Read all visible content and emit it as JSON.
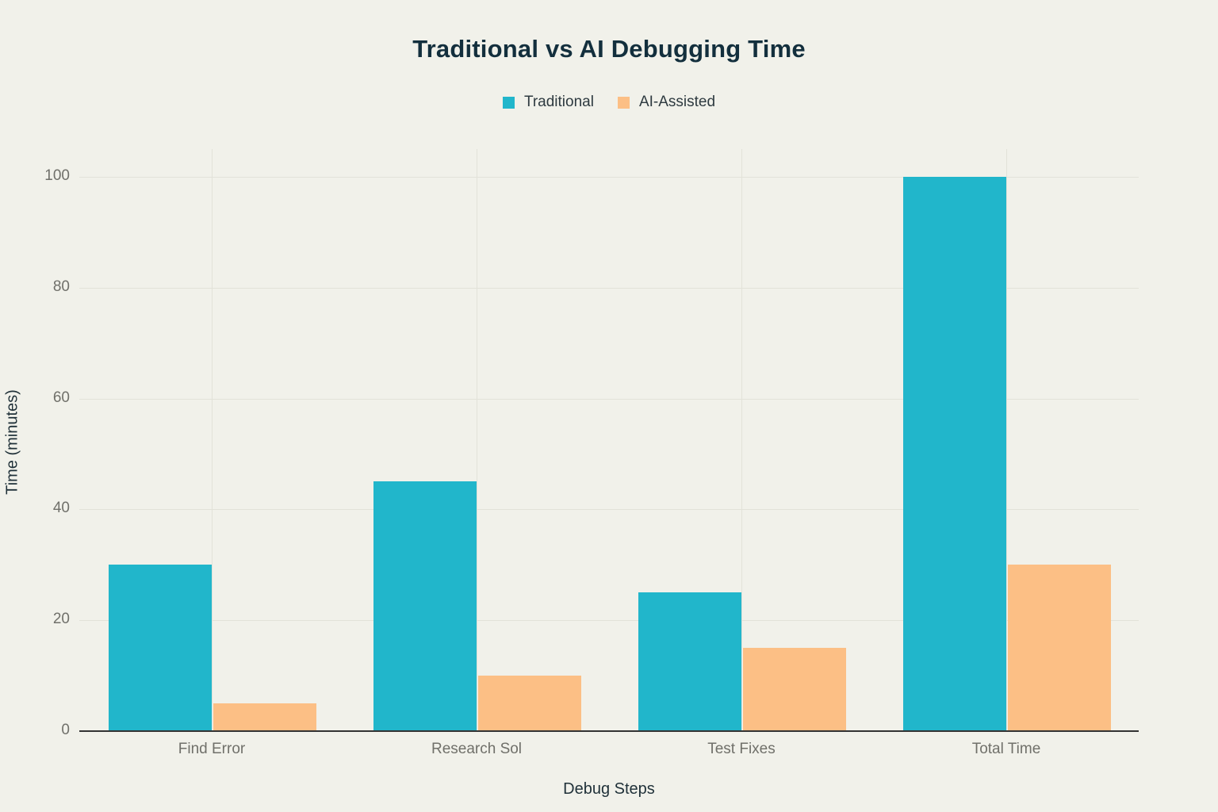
{
  "chart_data": {
    "type": "bar",
    "title": "Traditional vs AI Debugging Time",
    "xlabel": "Debug Steps",
    "ylabel": "Time (minutes)",
    "categories": [
      "Find Error",
      "Research Sol",
      "Test Fixes",
      "Total Time"
    ],
    "series": [
      {
        "name": "Traditional",
        "color": "#21b6cb",
        "values": [
          30,
          45,
          25,
          100
        ]
      },
      {
        "name": "AI-Assisted",
        "color": "#fcbf85",
        "values": [
          5,
          10,
          15,
          30
        ]
      }
    ],
    "ylim": [
      0,
      105
    ],
    "yticks": [
      0,
      20,
      40,
      60,
      80,
      100
    ],
    "grid": true,
    "legend_position": "top"
  },
  "style": {
    "background": "#f1f1ea",
    "grid_color": "#e2e2d9",
    "axis_color": "#333333",
    "title_color": "#132f3d",
    "legend_text_color": "#2e3a40",
    "tick_text_color": "#70706a",
    "axis_title_color": "#1f3038"
  }
}
